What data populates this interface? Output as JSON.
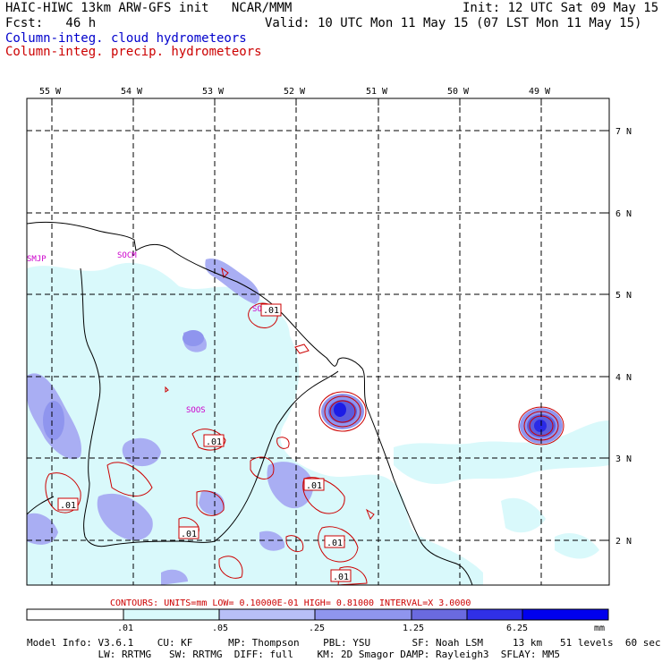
{
  "header": {
    "line1_left": "HAIC-HIWC 13km ARW-GFS init   NCAR/MMM",
    "line1_right": "Init: 12 UTC Sat 09 May 15",
    "line2_left": "Fcst:   46 h",
    "line2_right": "Valid: 10 UTC Mon 11 May 15 (07 LST Mon 11 May 15)",
    "field1": "Column-integ. cloud hydrometeors",
    "field2": "Column-integ. precip. hydrometeors"
  },
  "map": {
    "lon_labels": [
      "55 W",
      "54 W",
      "53 W",
      "52 W",
      "51 W",
      "50 W",
      "49 W"
    ],
    "lat_labels": [
      "7 N",
      "6 N",
      "5 N",
      "4 N",
      "3 N",
      "2 N"
    ],
    "station_labels": [
      "SMJP",
      "SOCM",
      "SOCA",
      "SOOS"
    ],
    "contour_labels": [
      ".01",
      ".01",
      ".01",
      ".01",
      ".01",
      ".01",
      ".01"
    ],
    "colors": {
      "land_border": "#000000",
      "grid": "#000000",
      "fill_light": "#d9f9fb",
      "fill_mid": "#a3a8f2",
      "fill_dark": "#6b6bd9",
      "fill_core": "#2222dd",
      "contour": "#cc0000",
      "station": "#cc00cc"
    }
  },
  "contours_note": "CONTOURS:  UNITS=mm  LOW= 0.10000E-01  HIGH= 0.81000     INTERVAL=X  3.0000",
  "colorbar": {
    "ticks": [
      ".01",
      ".05",
      ".25",
      "1.25",
      "6.25"
    ],
    "unit": "mm",
    "colors": [
      "#ffffff",
      "#d9f9fb",
      "#b8bff7",
      "#8f95ee",
      "#6a6adf",
      "#3030e6",
      "#0000ee"
    ]
  },
  "footer": {
    "line1": "Model Info: V3.6.1    CU: KF      MP: Thompson    PBL: YSU       SF: Noah LSM     13 km   51 levels  60 sec",
    "line2": "            LW: RRTMG   SW: RRTMG  DIFF: full    KM: 2D Smagor DAMP: Rayleigh3  SFLAY: MM5"
  }
}
